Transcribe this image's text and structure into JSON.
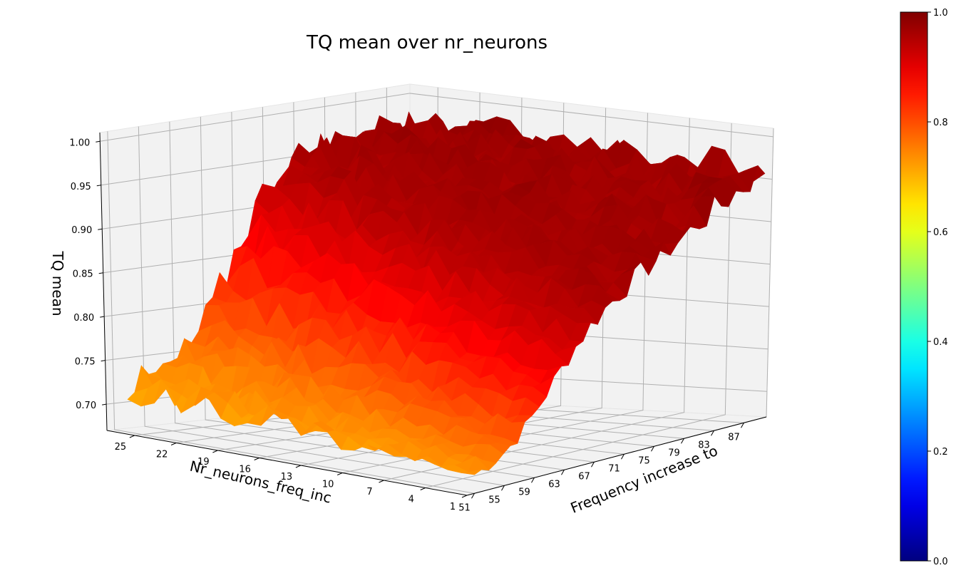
{
  "chart_data": {
    "type": "surface3d",
    "title": "TQ mean over nr_neurons",
    "xlabel": "Frequency increase to",
    "ylabel": "Nr_neurons_freq_inc",
    "zlabel": "TQ mean",
    "x_ticks": [
      "51",
      "55",
      "59",
      "63",
      "67",
      "71",
      "75",
      "79",
      "83",
      "87"
    ],
    "y_ticks": [
      "1",
      "4",
      "7",
      "10",
      "13",
      "16",
      "19",
      "22",
      "25"
    ],
    "z_ticks": [
      "0.70",
      "0.75",
      "0.80",
      "0.85",
      "0.90",
      "0.95",
      "1.00"
    ],
    "x_range": [
      50,
      90
    ],
    "y_range": [
      1,
      27
    ],
    "z_range": [
      0.67,
      1.01
    ],
    "colorbar": {
      "colormap": "jet",
      "ticks": [
        "0.0",
        "0.2",
        "0.4",
        "0.6",
        "0.8",
        "1.0"
      ],
      "range": [
        0,
        1
      ]
    },
    "surface_model": {
      "z_at_low_freq": 0.72,
      "z_at_high_freq": 0.97,
      "transition_center_freq": 62,
      "noise_amplitude": 0.02
    },
    "grid": true
  }
}
